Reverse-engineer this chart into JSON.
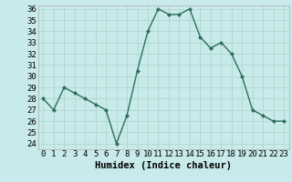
{
  "x": [
    0,
    1,
    2,
    3,
    4,
    5,
    6,
    7,
    8,
    9,
    10,
    11,
    12,
    13,
    14,
    15,
    16,
    17,
    18,
    19,
    20,
    21,
    22,
    23
  ],
  "y": [
    28,
    27,
    29,
    28.5,
    28,
    27.5,
    27,
    24,
    26.5,
    30.5,
    34,
    36,
    35.5,
    35.5,
    36,
    33.5,
    32.5,
    33,
    32,
    30,
    27,
    26.5,
    26,
    26
  ],
  "xlabel": "Humidex (Indice chaleur)",
  "ylim_min": 23.5,
  "ylim_max": 36.3,
  "xlim_min": -0.5,
  "xlim_max": 23.5,
  "yticks": [
    24,
    25,
    26,
    27,
    28,
    29,
    30,
    31,
    32,
    33,
    34,
    35,
    36
  ],
  "xticks": [
    0,
    1,
    2,
    3,
    4,
    5,
    6,
    7,
    8,
    9,
    10,
    11,
    12,
    13,
    14,
    15,
    16,
    17,
    18,
    19,
    20,
    21,
    22,
    23
  ],
  "line_color": "#2e6e5e",
  "bg_color": "#c8eaea",
  "grid_color": "#b0d8d0",
  "spine_color": "#aaaaaa",
  "tick_fontsize": 6.5,
  "label_fontsize": 7.5
}
